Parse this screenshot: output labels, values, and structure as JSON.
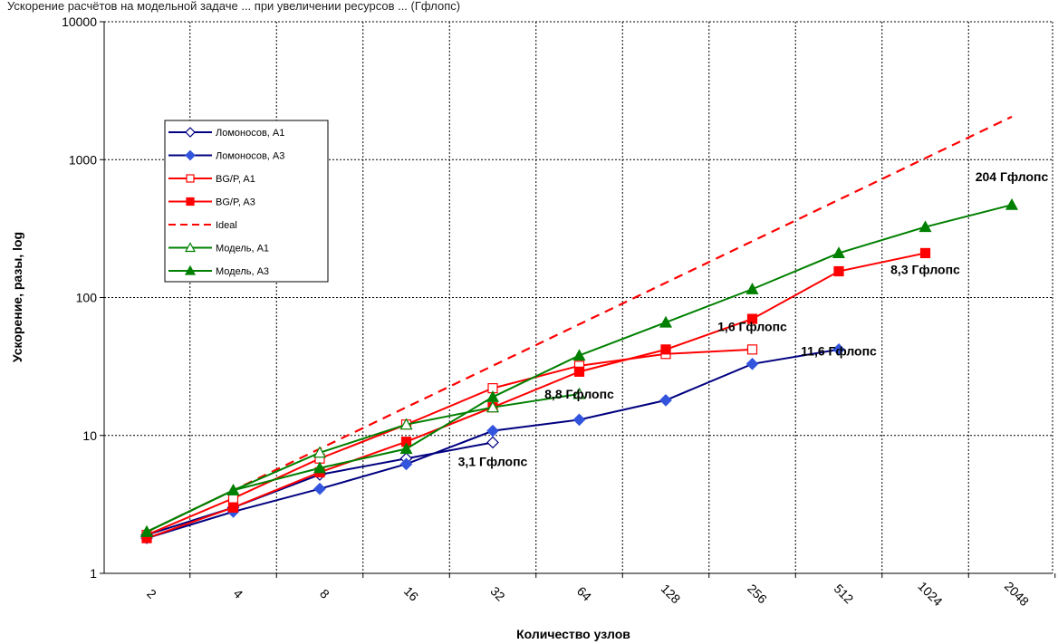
{
  "caption": "Ускорение расчётов на модельной задаче ... при увеличении ресурсов ... (Гфлопс)",
  "chart_data": {
    "type": "line",
    "title": "",
    "xlabel": "Количество узлов",
    "ylabel": "Ускорение, разы, log",
    "y_scale": "log",
    "ylim": [
      1,
      10000
    ],
    "x_scale": "log2",
    "x_ticks": [
      "2",
      "4",
      "8",
      "16",
      "32",
      "64",
      "128",
      "256",
      "512",
      "1024",
      "2048"
    ],
    "y_ticks": [
      "1",
      "10",
      "100",
      "1000",
      "10000"
    ],
    "grid": true,
    "legend_position": "upper-left",
    "series": [
      {
        "name": "Ломоносов, A1",
        "color": "#000080",
        "marker": "diamond-open",
        "line": "solid",
        "x": [
          2,
          4,
          8,
          16,
          32
        ],
        "y": [
          1.9,
          3.0,
          5.2,
          6.8,
          8.9
        ]
      },
      {
        "name": "Ломоносов, A3",
        "color": "#000080",
        "marker_color": "#3355dd",
        "marker": "diamond",
        "line": "solid",
        "x": [
          2,
          4,
          8,
          16,
          32,
          64,
          128,
          256,
          512
        ],
        "y": [
          1.8,
          2.8,
          4.1,
          6.2,
          10.8,
          13,
          18,
          33,
          42
        ]
      },
      {
        "name": "BG/P, A1",
        "color": "#ff0000",
        "marker": "square-open",
        "line": "solid",
        "x": [
          2,
          4,
          8,
          16,
          32,
          64,
          128,
          256
        ],
        "y": [
          1.9,
          3.5,
          6.8,
          12,
          22,
          32,
          39,
          42
        ]
      },
      {
        "name": "BG/P, A3",
        "color": "#ff0000",
        "marker": "square",
        "line": "solid",
        "x": [
          2,
          4,
          8,
          16,
          32,
          64,
          128,
          256,
          512,
          1024
        ],
        "y": [
          1.8,
          3.0,
          5.4,
          9.0,
          16,
          29,
          42,
          70,
          155,
          210
        ]
      },
      {
        "name": "Ideal",
        "color": "#ff0000",
        "marker": "none",
        "line": "dashed",
        "x": [
          2,
          2048
        ],
        "y": [
          2,
          2048
        ]
      },
      {
        "name": "Модель, A1",
        "color": "#008000",
        "marker": "triangle-open",
        "line": "solid",
        "x": [
          2,
          4,
          8,
          16,
          32,
          64
        ],
        "y": [
          2.0,
          4.0,
          7.5,
          12,
          16,
          20
        ]
      },
      {
        "name": "Модель, A3",
        "color": "#008000",
        "marker": "triangle",
        "line": "solid",
        "x": [
          2,
          4,
          8,
          16,
          32,
          64,
          128,
          256,
          512,
          1024,
          2048
        ],
        "y": [
          2.0,
          4.0,
          5.8,
          8.0,
          19,
          38,
          66,
          115,
          210,
          325,
          470
        ]
      }
    ],
    "annotations": [
      {
        "text": "3,1 Гфлопс",
        "x": 32,
        "y": 6.0
      },
      {
        "text": "8,8 Гфлопс",
        "x": 64,
        "y": 18.5
      },
      {
        "text": "1,6 Гфлопс",
        "x": 256,
        "y": 57
      },
      {
        "text": "11,6 Гфлопс",
        "x": 512,
        "y": 38
      },
      {
        "text": "8,3 Гфлопс",
        "x": 1024,
        "y": 148
      },
      {
        "text": "204 Гфлопс",
        "x": 2048,
        "y": 700
      }
    ]
  }
}
